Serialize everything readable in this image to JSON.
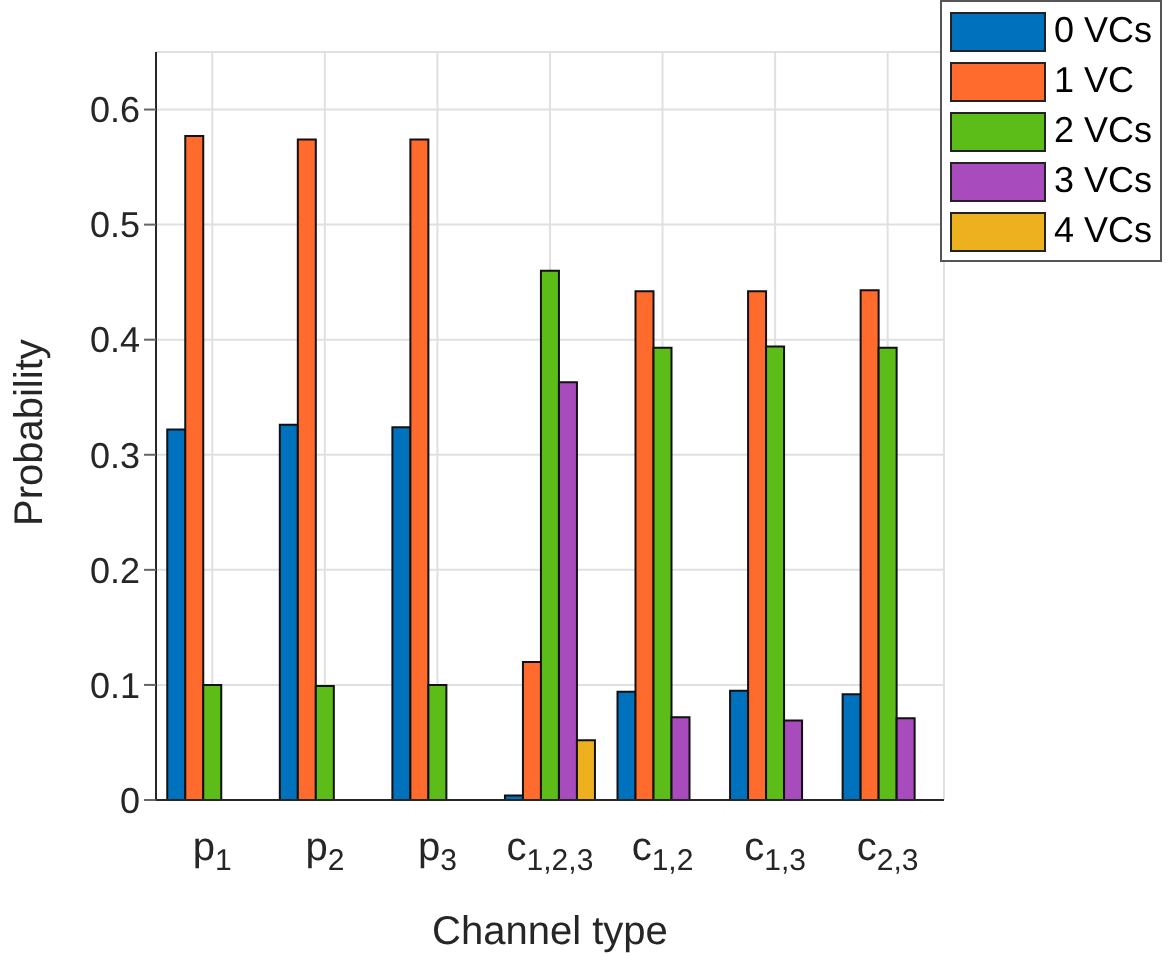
{
  "chart_data": {
    "type": "bar",
    "xlabel": "Channel type",
    "ylabel": "Probability",
    "categories": [
      "p$_{1}$",
      "p$_{2}$",
      "p$_{3}$",
      "c$_{1,2,3}$",
      "c$_{1,2}$",
      "c$_{1,3}$",
      "c$_{2,3}$"
    ],
    "series": [
      {
        "name": "0 VCs",
        "color": "#0072bd",
        "values": [
          0.322,
          0.326,
          0.324,
          0.004,
          0.094,
          0.095,
          0.092
        ]
      },
      {
        "name": "1 VC",
        "color": "#ff6a2d",
        "values": [
          0.577,
          0.574,
          0.574,
          0.12,
          0.442,
          0.442,
          0.443
        ]
      },
      {
        "name": "2 VCs",
        "color": "#5cbc18",
        "values": [
          0.1,
          0.099,
          0.1,
          0.46,
          0.393,
          0.394,
          0.393
        ]
      },
      {
        "name": "3 VCs",
        "color": "#a84bbd",
        "values": [
          0,
          0,
          0,
          0.363,
          0.072,
          0.069,
          0.071
        ]
      },
      {
        "name": "4 VCs",
        "color": "#edb120",
        "values": [
          0,
          0,
          0,
          0.052,
          0,
          0,
          0
        ]
      }
    ],
    "ylim": [
      0,
      0.65
    ],
    "yticks": [
      0,
      0.1,
      0.2,
      0.3,
      0.4,
      0.5,
      0.6
    ],
    "grid": true,
    "legend": "top right"
  }
}
